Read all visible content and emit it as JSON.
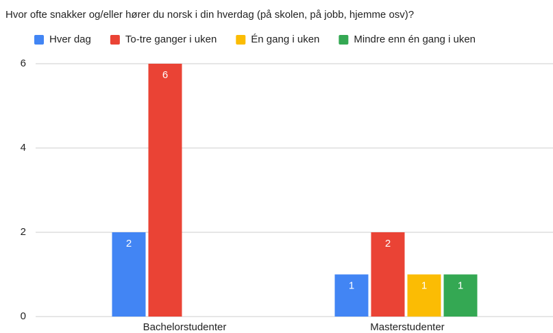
{
  "chart_data": {
    "type": "bar",
    "title": "Hvor ofte snakker og/eller hører du norsk i din hverdag (på skolen, på jobb, hjemme osv)?",
    "categories": [
      "Bachelorstudenter",
      "Masterstudenter"
    ],
    "series": [
      {
        "name": "Hver dag",
        "color": "#4285f4",
        "values": [
          2,
          1
        ]
      },
      {
        "name": "To-tre ganger i uken",
        "color": "#ea4335",
        "values": [
          6,
          2
        ]
      },
      {
        "name": "Én gang i uken",
        "color": "#fbbc04",
        "values": [
          null,
          1
        ]
      },
      {
        "name": "Mindre enn én gang i uken",
        "color": "#34a853",
        "values": [
          null,
          1
        ]
      }
    ],
    "ylim": [
      0,
      6
    ],
    "yticks": [
      0,
      2,
      4,
      6
    ],
    "grid": true,
    "legend": "top"
  }
}
